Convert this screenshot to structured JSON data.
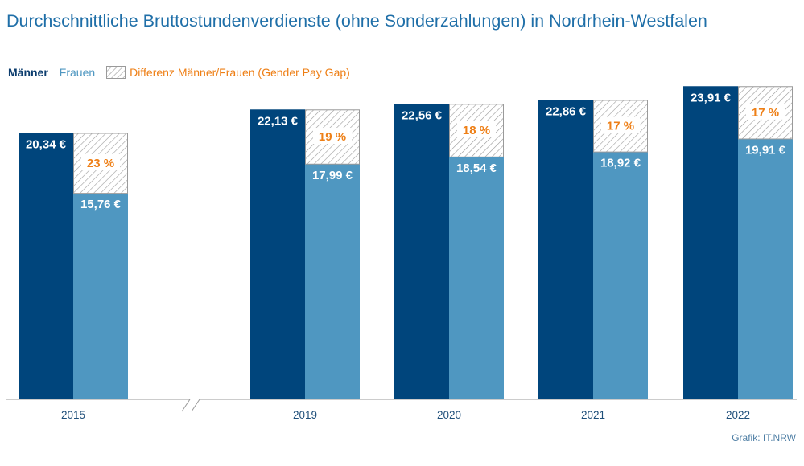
{
  "title": "Durchschnittliche Bruttostundenverdienste (ohne Sonderzahlungen) in Nordrhein-Westfalen",
  "legend": {
    "men": "Männer",
    "women": "Frauen",
    "gap": "Differenz Männer/Frauen (Gender Pay Gap)"
  },
  "source": "Grafik: IT.NRW",
  "colors": {
    "men": "#00457c",
    "women": "#4f97c1",
    "gap_text": "#ee7f16",
    "title": "#1f6fa8",
    "hatch": "#9a9a9a"
  },
  "chart_data": {
    "type": "bar",
    "categories": [
      "2015",
      "2019",
      "2020",
      "2021",
      "2022"
    ],
    "series": [
      {
        "name": "Männer",
        "values": [
          20.34,
          22.13,
          22.56,
          22.86,
          23.91
        ],
        "labels": [
          "20,34 €",
          "22,13 €",
          "22,56 €",
          "22,86 €",
          "23,91 €"
        ]
      },
      {
        "name": "Frauen",
        "values": [
          15.76,
          17.99,
          18.54,
          18.92,
          19.91
        ],
        "labels": [
          "15,76 €",
          "17,99 €",
          "18,54 €",
          "18,92 €",
          "19,91 €"
        ]
      },
      {
        "name": "Differenz Männer/Frauen (Gender Pay Gap)",
        "values": [
          23,
          19,
          18,
          17,
          17
        ],
        "labels": [
          "23 %",
          "19 %",
          "18 %",
          "17 %",
          "17 %"
        ]
      }
    ],
    "ylim": [
      0,
      25.8
    ],
    "axis_break_between": [
      "2015",
      "2019"
    ],
    "grid": false,
    "legend_position": "top-left",
    "xlabel": "",
    "ylabel": ""
  }
}
